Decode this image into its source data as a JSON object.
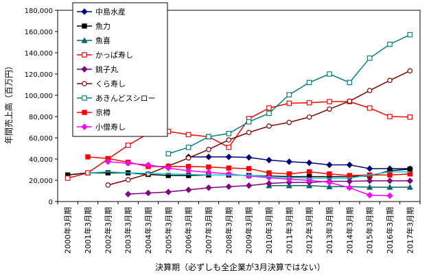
{
  "chart_data": {
    "type": "line",
    "title": "",
    "xlabel": "決算期（必ずしも全企業が3月決算ではない）",
    "ylabel": "年間売上高（百万円）",
    "ylim": [
      0,
      180000
    ],
    "yticks": [
      0,
      20000,
      40000,
      60000,
      80000,
      100000,
      120000,
      140000,
      160000,
      180000
    ],
    "ytick_labels": [
      "0",
      "20,000",
      "40,000",
      "60,000",
      "80,000",
      "100,000",
      "120,000",
      "140,000",
      "160,000",
      "180,000"
    ],
    "categories": [
      "2000年3月期",
      "2001年3月期",
      "2002年3月期",
      "2003年3月期",
      "2004年3月期",
      "2005年3月期",
      "2006年3月期",
      "2007年3月期",
      "2008年3月期",
      "2009年3月期",
      "2010年3月期",
      "2011年3月期",
      "2012年3月期",
      "2013年3月期",
      "2014年3月期",
      "2015年3月期",
      "2016年3月期",
      "2017年3月期"
    ],
    "grid": false,
    "legend_position": "top-left inside plot",
    "series": [
      {
        "name": "中島水産",
        "color": "#000080",
        "marker": "diamond",
        "values": [
          null,
          null,
          null,
          null,
          null,
          null,
          42000,
          42000,
          42000,
          41500,
          39000,
          37500,
          36500,
          34500,
          34500,
          31000,
          31000,
          31000
        ]
      },
      {
        "name": "魚力",
        "color": "#000000",
        "marker": "square",
        "values": [
          25000,
          27000,
          27000,
          27000,
          25500,
          24500,
          24500,
          25000,
          25000,
          24500,
          24000,
          23500,
          23500,
          23500,
          23500,
          24000,
          29000,
          30500
        ]
      },
      {
        "name": "魚喜",
        "color": "#006666",
        "marker": "triangle",
        "values": [
          null,
          null,
          null,
          null,
          null,
          null,
          null,
          null,
          null,
          null,
          15000,
          15000,
          15000,
          14000,
          14000,
          13500,
          13500,
          13500
        ]
      },
      {
        "name": "かっぱ寿し",
        "color": "#ff0000",
        "marker": "square-open",
        "values": [
          22000,
          27000,
          40000,
          53000,
          64000,
          66000,
          63000,
          61000,
          51000,
          78000,
          88000,
          92500,
          93000,
          94000,
          94000,
          88000,
          80000,
          79500
        ]
      },
      {
        "name": "銚子丸",
        "color": "#800080",
        "marker": "diamond",
        "values": [
          null,
          null,
          null,
          7000,
          8000,
          9000,
          11000,
          13000,
          14000,
          15000,
          17000,
          18000,
          18000,
          19000,
          19000,
          19500,
          19500,
          19500
        ]
      },
      {
        "name": "くら寿し",
        "color": "#800000",
        "marker": "circle-open",
        "values": [
          null,
          null,
          15500,
          20500,
          26000,
          33500,
          41000,
          49000,
          58000,
          65000,
          71000,
          74500,
          79500,
          87000,
          94500,
          104500,
          114000,
          123000
        ]
      },
      {
        "name": "あきんどスシロー",
        "color": "#008080",
        "marker": "square-open",
        "values": [
          null,
          null,
          null,
          null,
          null,
          45000,
          51000,
          61000,
          64000,
          75000,
          83000,
          100500,
          112000,
          120000,
          112000,
          135000,
          148000,
          157000
        ]
      },
      {
        "name": "京樽",
        "color": "#ff0000",
        "marker": "square",
        "values": [
          null,
          42000,
          40500,
          37000,
          33000,
          33000,
          33000,
          32500,
          31500,
          31000,
          27000,
          26000,
          28000,
          26000,
          24500,
          25000,
          25000,
          26000
        ]
      },
      {
        "name": "小僧寿し",
        "color": "#ff00ff",
        "marker": "diamond",
        "values": [
          null,
          null,
          37500,
          36000,
          34500,
          31500,
          29000,
          27500,
          26000,
          24000,
          22500,
          21000,
          20000,
          18000,
          13000,
          6000,
          5500,
          null
        ]
      },
      {
        "name": "",
        "color": "#00cccc",
        "marker": "none",
        "values": [
          null,
          27000,
          28000,
          27000,
          26500,
          26000,
          25500,
          25000,
          25000,
          24500,
          23500,
          22500,
          22000,
          22000,
          22000,
          25000,
          28000,
          28000
        ]
      }
    ]
  }
}
